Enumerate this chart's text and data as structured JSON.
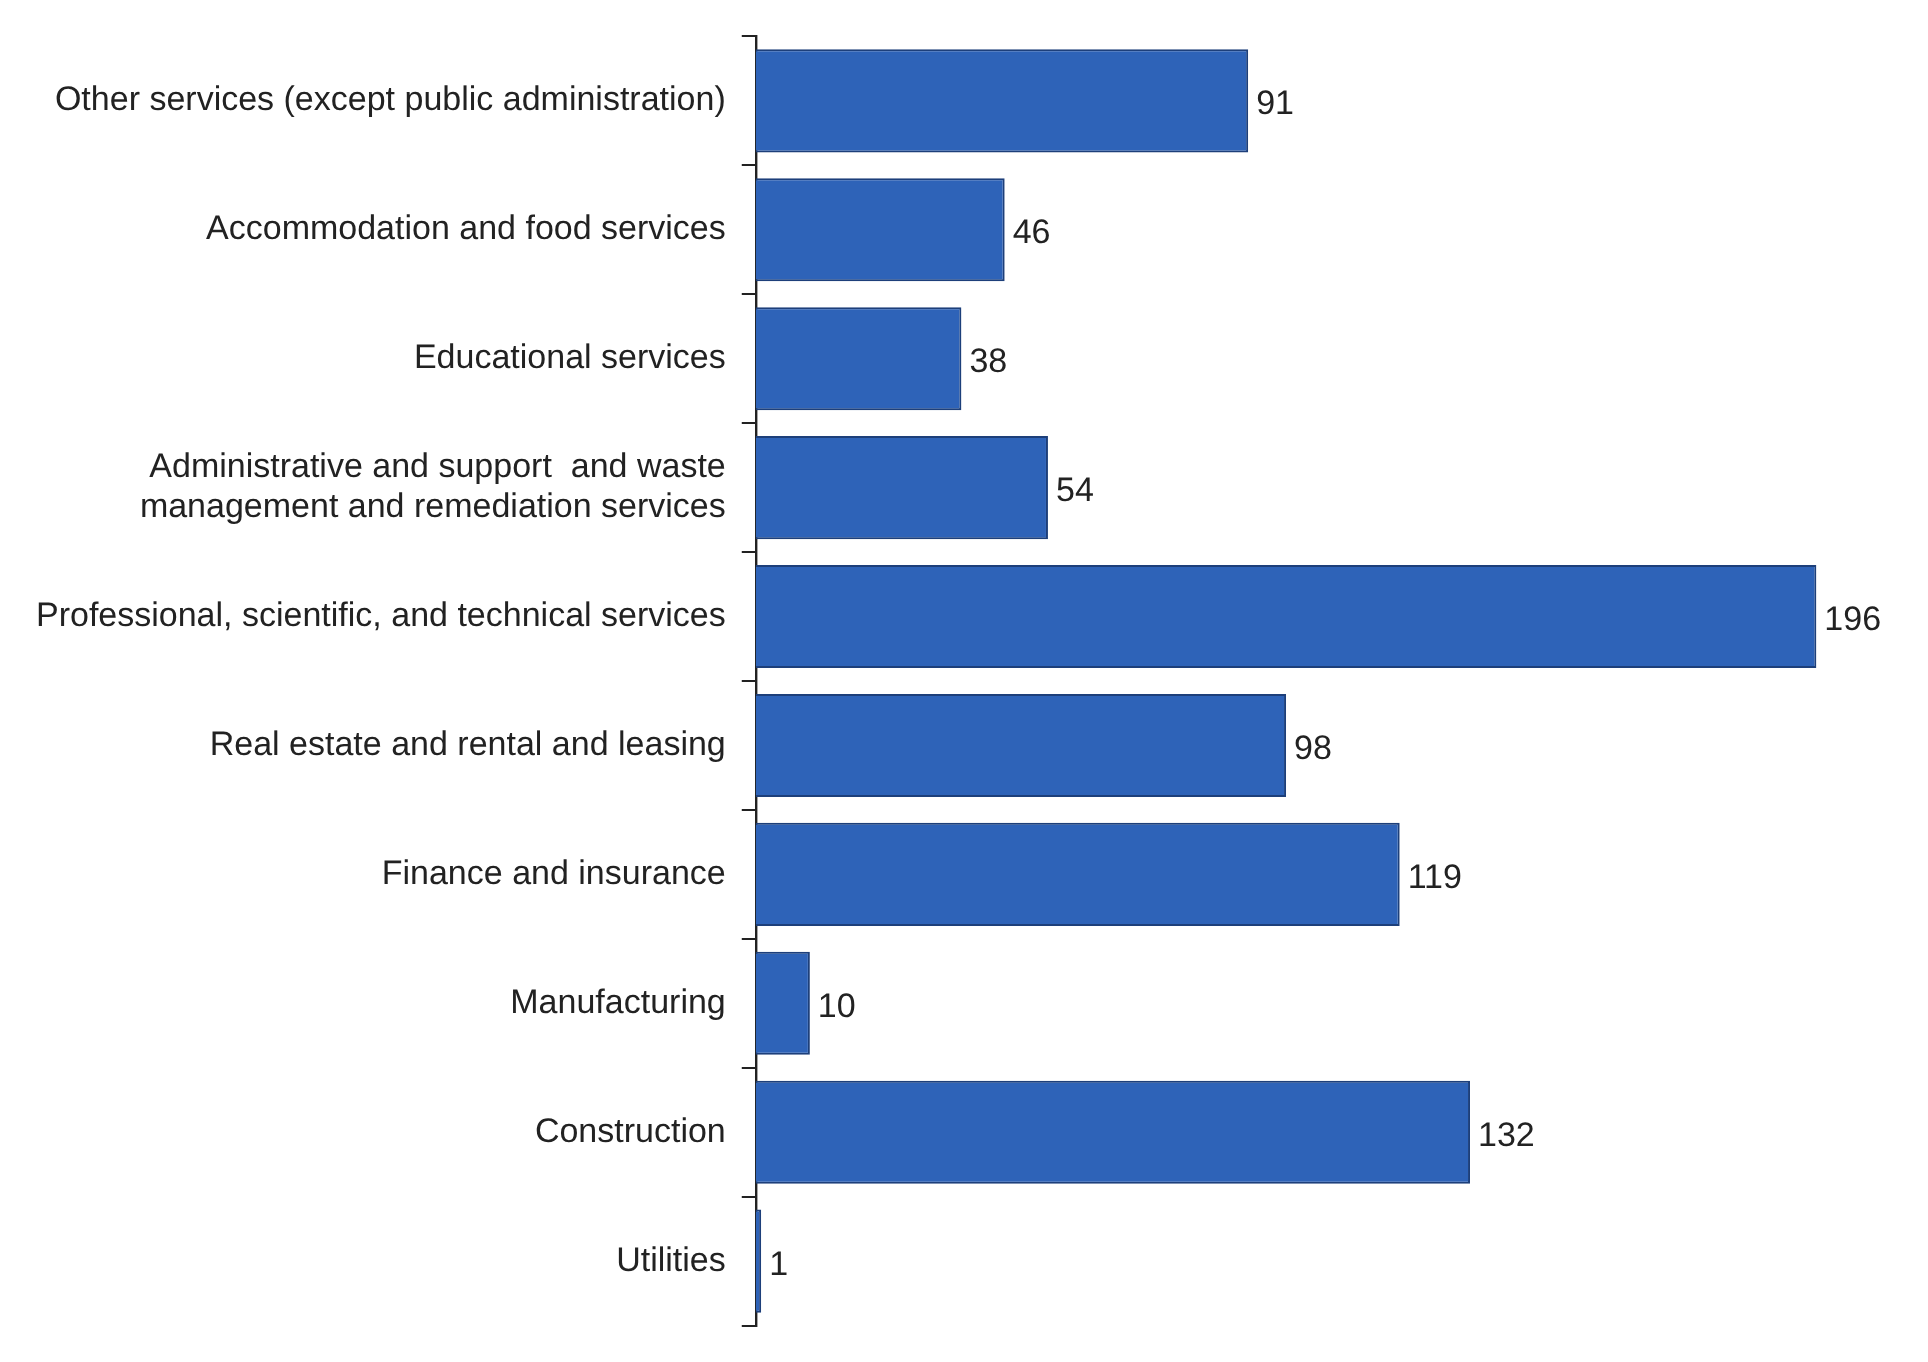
{
  "chart_data": {
    "type": "bar",
    "orientation": "horizontal",
    "categories": [
      "Other services (except public administration)",
      "Accommodation and food services",
      "Educational services",
      "Administrative and support  and waste management and remediation services",
      "Professional, scientific, and technical services",
      "Real estate and rental and leasing",
      "Finance and insurance",
      "Manufacturing",
      "Construction",
      "Utilities"
    ],
    "values": [
      91,
      46,
      38,
      54,
      196,
      98,
      119,
      10,
      132,
      1
    ],
    "color": "#2e63b8",
    "data_labels": true,
    "legend": false
  }
}
